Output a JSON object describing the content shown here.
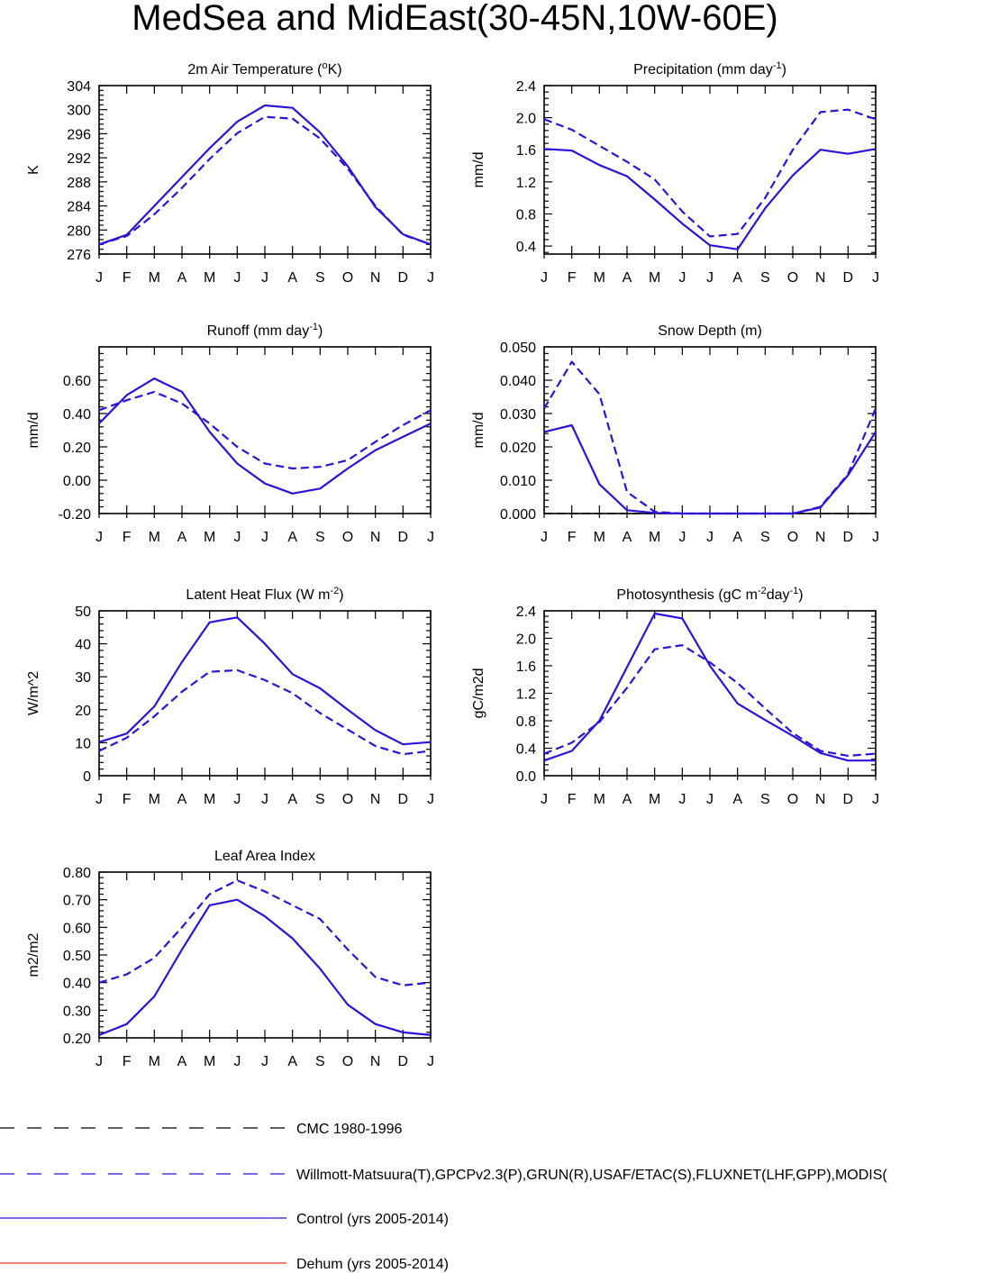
{
  "title": "MedSea and MidEast(30-45N,10W-60E)",
  "months": [
    "J",
    "F",
    "M",
    "A",
    "M",
    "J",
    "J",
    "A",
    "S",
    "O",
    "N",
    "D",
    "J"
  ],
  "colors": {
    "blue": "#2b14d8",
    "black": "#000000",
    "red": "#ee3322"
  },
  "legend": [
    {
      "label": "CMC 1980-1996",
      "color": "#000000",
      "dash": true
    },
    {
      "label": "Willmott-Matsuura(T),GPCPv2.3(P),GRUN(R),USAF/ETAC(S),FLUXNET(LHF,GPP),MODIS(",
      "color": "#2b14d8",
      "dash": true
    },
    {
      "label": "Control (yrs 2005-2014)",
      "color": "#2b14d8",
      "dash": false
    },
    {
      "label": "Dehum (yrs 2005-2014)",
      "color": "#ee3322",
      "dash": false
    }
  ],
  "chart_data": [
    {
      "type": "line",
      "title": "2m Air Temperature (oK)",
      "title_parts": {
        "pre": "2m Air Temperature (",
        "sup": "o",
        "post": "K)"
      },
      "ylabel": "K",
      "ylim": [
        276,
        304
      ],
      "yticks": [
        276,
        280,
        284,
        288,
        292,
        296,
        300,
        304
      ],
      "ytick_labels": [
        "276",
        "280",
        "284",
        "288",
        "292",
        "296",
        "300",
        "304"
      ],
      "series": [
        {
          "style": "obs",
          "values": [
            277.6,
            279.0,
            282.6,
            287.0,
            291.8,
            296.1,
            298.8,
            298.5,
            295.2,
            290.2,
            284.0,
            279.2,
            277.6
          ]
        },
        {
          "style": "control",
          "values": [
            277.6,
            279.2,
            284.0,
            288.8,
            293.6,
            298.0,
            300.7,
            300.3,
            296.2,
            290.6,
            283.8,
            279.3,
            277.6
          ]
        }
      ]
    },
    {
      "type": "line",
      "title": "Precipitation (mm day-1)",
      "title_parts": {
        "pre": "Precipitation (mm day",
        "sup": "-1",
        "post": ")"
      },
      "ylabel": "mm/d",
      "ylim": [
        0.3,
        2.4
      ],
      "yticks": [
        0.4,
        0.8,
        1.2,
        1.6,
        2.0,
        2.4
      ],
      "ytick_labels": [
        "0.4",
        "0.8",
        "1.2",
        "1.6",
        "2.0",
        "2.4"
      ],
      "series": [
        {
          "style": "obs",
          "values": [
            1.98,
            1.85,
            1.65,
            1.45,
            1.23,
            0.83,
            0.52,
            0.55,
            1.0,
            1.6,
            2.07,
            2.1,
            1.98
          ]
        },
        {
          "style": "control",
          "values": [
            1.61,
            1.59,
            1.41,
            1.27,
            0.98,
            0.68,
            0.41,
            0.36,
            0.87,
            1.28,
            1.6,
            1.55,
            1.61
          ]
        }
      ]
    },
    {
      "type": "line",
      "title": "Runoff (mm day-1)",
      "title_parts": {
        "pre": "Runoff (mm day",
        "sup": "-1",
        "post": ")"
      },
      "ylabel": "mm/d",
      "ylim": [
        -0.2,
        0.8
      ],
      "yticks": [
        -0.2,
        0.0,
        0.2,
        0.4,
        0.6
      ],
      "ytick_labels": [
        "-0.20",
        "0.00",
        "0.20",
        "0.40",
        "0.60"
      ],
      "series": [
        {
          "style": "obs",
          "values": [
            0.42,
            0.48,
            0.53,
            0.46,
            0.34,
            0.2,
            0.1,
            0.07,
            0.08,
            0.12,
            0.23,
            0.33,
            0.42
          ]
        },
        {
          "style": "control",
          "values": [
            0.34,
            0.51,
            0.61,
            0.53,
            0.29,
            0.1,
            -0.02,
            -0.08,
            -0.05,
            0.07,
            0.18,
            0.26,
            0.34
          ]
        }
      ]
    },
    {
      "type": "line",
      "title": "Snow Depth (m)",
      "title_parts": {
        "pre": "Snow Depth (m)",
        "sup": "",
        "post": ""
      },
      "ylabel": "mm/d",
      "ylim": [
        0,
        0.05
      ],
      "yticks": [
        0,
        0.01,
        0.02,
        0.03,
        0.04,
        0.05
      ],
      "ytick_labels": [
        "0.000",
        "0.010",
        "0.020",
        "0.030",
        "0.040",
        "0.050"
      ],
      "series": [
        {
          "style": "cmc",
          "values": [
            0,
            0,
            0,
            0,
            0,
            0,
            0,
            0,
            0,
            0,
            0,
            0,
            0
          ]
        },
        {
          "style": "obs",
          "values": [
            0.0315,
            0.0455,
            0.0358,
            0.0065,
            0.0005,
            0,
            0,
            0,
            0,
            0,
            0.002,
            0.0118,
            0.0315
          ]
        },
        {
          "style": "control",
          "values": [
            0.0245,
            0.0265,
            0.0088,
            0.001,
            0.0002,
            0,
            0,
            0,
            0,
            0,
            0.0018,
            0.0115,
            0.0245
          ]
        }
      ]
    },
    {
      "type": "line",
      "title": "Latent Heat Flux (W m-2)",
      "title_parts": {
        "pre": "Latent Heat Flux (W m",
        "sup": "-2",
        "post": ")"
      },
      "ylabel": "W/m^2",
      "ylim": [
        0,
        50
      ],
      "yticks": [
        0,
        10,
        20,
        30,
        40,
        50
      ],
      "ytick_labels": [
        "0",
        "10",
        "20",
        "30",
        "40",
        "50"
      ],
      "series": [
        {
          "style": "obs",
          "values": [
            7.5,
            11.5,
            18.0,
            25.5,
            31.5,
            32.0,
            29.0,
            25.0,
            19.0,
            14.0,
            9.0,
            6.5,
            7.5
          ]
        },
        {
          "style": "control",
          "values": [
            10.2,
            12.8,
            21.0,
            34.5,
            46.5,
            48.0,
            40.0,
            30.8,
            26.5,
            20.0,
            13.8,
            9.5,
            10.2
          ]
        }
      ]
    },
    {
      "type": "line",
      "title": "Photosynthesis (gC m-2day-1)",
      "title_parts": {
        "pre": "Photosynthesis (gC m",
        "sup": "-2",
        "mid": "day",
        "sup2": "-1",
        "post": ")"
      },
      "ylabel": "gC/m2d",
      "ylim": [
        0,
        2.4
      ],
      "yticks": [
        0,
        0.4,
        0.8,
        1.2,
        1.6,
        2.0,
        2.4
      ],
      "ytick_labels": [
        "0.0",
        "0.4",
        "0.8",
        "1.2",
        "1.6",
        "2.0",
        "2.4"
      ],
      "series": [
        {
          "style": "obs",
          "values": [
            0.32,
            0.48,
            0.78,
            1.28,
            1.84,
            1.9,
            1.65,
            1.35,
            0.98,
            0.62,
            0.36,
            0.29,
            0.32
          ]
        },
        {
          "style": "control",
          "values": [
            0.22,
            0.36,
            0.8,
            1.58,
            2.36,
            2.29,
            1.6,
            1.05,
            0.81,
            0.58,
            0.33,
            0.22,
            0.22
          ]
        }
      ]
    },
    {
      "type": "line",
      "title": "Leaf Area Index",
      "title_parts": {
        "pre": "Leaf Area Index",
        "sup": "",
        "post": ""
      },
      "ylabel": "m2/m2",
      "ylim": [
        0.2,
        0.8
      ],
      "yticks": [
        0.2,
        0.3,
        0.4,
        0.5,
        0.6,
        0.7,
        0.8
      ],
      "ytick_labels": [
        "0.20",
        "0.30",
        "0.40",
        "0.50",
        "0.60",
        "0.70",
        "0.80"
      ],
      "series": [
        {
          "style": "obs",
          "values": [
            0.4,
            0.43,
            0.49,
            0.6,
            0.72,
            0.77,
            0.73,
            0.68,
            0.63,
            0.52,
            0.42,
            0.39,
            0.4
          ]
        },
        {
          "style": "control",
          "values": [
            0.21,
            0.25,
            0.35,
            0.52,
            0.68,
            0.7,
            0.64,
            0.56,
            0.45,
            0.32,
            0.25,
            0.22,
            0.21
          ]
        }
      ]
    }
  ]
}
